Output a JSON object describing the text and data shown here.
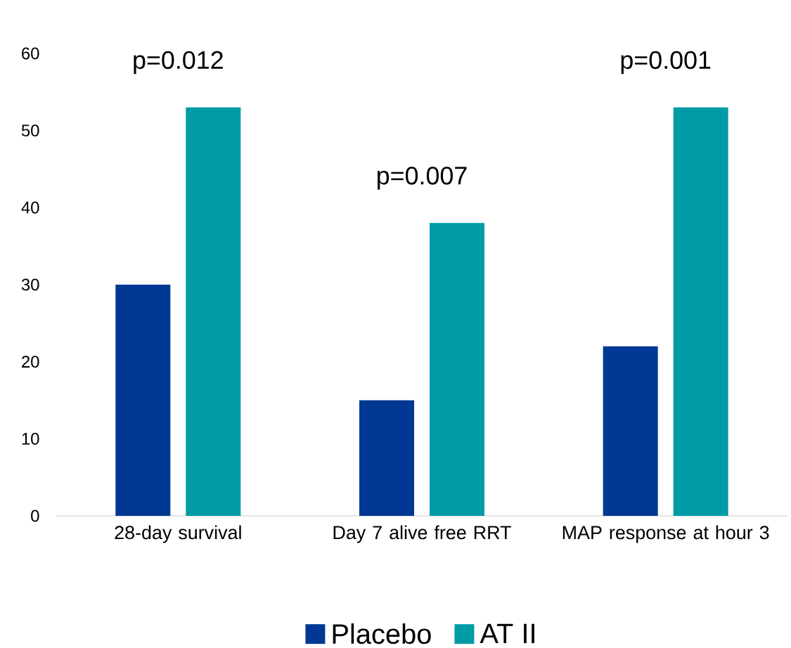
{
  "chart_data": {
    "type": "bar",
    "categories": [
      "28-day survival",
      "Day 7 alive free RRT",
      "MAP response at hour 3"
    ],
    "series": [
      {
        "name": "Placebo",
        "color": "#003893",
        "values": [
          30,
          15,
          22
        ]
      },
      {
        "name": "AT II",
        "color": "#009ca6",
        "values": [
          53,
          38,
          53
        ]
      }
    ],
    "ylim": [
      0,
      60
    ],
    "yticks": [
      0,
      10,
      20,
      30,
      40,
      50,
      60
    ],
    "grid": false,
    "legend": "bottom",
    "annotations": [
      "p=0.012",
      "p=0.007",
      "p=0.001"
    ]
  }
}
